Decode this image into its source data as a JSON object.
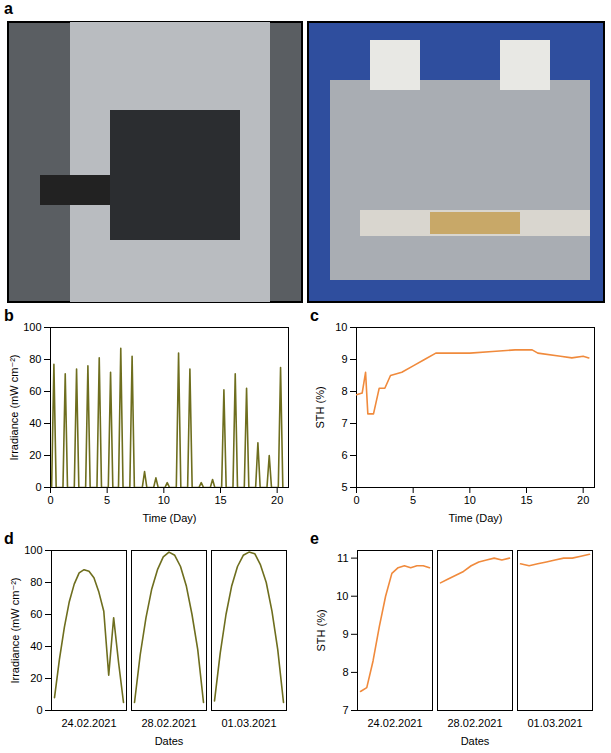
{
  "photo": {
    "panel": "a"
  },
  "chart_data": [
    {
      "type": "line",
      "panel": "b",
      "x_label": "Time (Day)",
      "y_label": "Irradiance (mW cm⁻²)",
      "color": "#6e6e1e",
      "x": [
        0.1,
        0.3,
        0.5,
        1.1,
        1.3,
        1.5,
        2.1,
        2.3,
        2.5,
        3.1,
        3.3,
        3.5,
        4.1,
        4.3,
        4.5,
        5.1,
        5.3,
        5.5,
        6.0,
        6.2,
        6.4,
        7.0,
        7.2,
        7.4,
        8.1,
        8.3,
        8.5,
        9.1,
        9.3,
        9.5,
        10.1,
        10.3,
        10.5,
        11.1,
        11.3,
        11.5,
        12.1,
        12.3,
        12.5,
        13.1,
        13.3,
        13.5,
        14.1,
        14.3,
        14.5,
        15.1,
        15.3,
        15.5,
        16.1,
        16.3,
        16.5,
        17.1,
        17.3,
        17.5,
        18.1,
        18.3,
        18.5,
        19.1,
        19.3,
        19.5,
        20.1,
        20.3,
        20.5
      ],
      "values": [
        0,
        77,
        0,
        0,
        71,
        0,
        0,
        74,
        0,
        0,
        76,
        0,
        0,
        81,
        0,
        0,
        72,
        0,
        0,
        87,
        0,
        0,
        82,
        0,
        0,
        10,
        0,
        0,
        6,
        0,
        0,
        3,
        0,
        0,
        84,
        0,
        0,
        74,
        0,
        0,
        3,
        0,
        0,
        5,
        0,
        0,
        61,
        0,
        0,
        71,
        0,
        0,
        62,
        0,
        0,
        28,
        0,
        0,
        20,
        0,
        0,
        75,
        0
      ],
      "xlim": [
        0,
        21
      ],
      "xticks": [
        0,
        5,
        10,
        15,
        20
      ],
      "ylim": [
        0,
        100
      ],
      "yticks": [
        0,
        20,
        40,
        60,
        80,
        100
      ]
    },
    {
      "type": "line",
      "panel": "c",
      "x_label": "Time (Day)",
      "y_label": "STH (%)",
      "color": "#f08a3c",
      "x": [
        0,
        0.5,
        0.8,
        1.0,
        1.5,
        2.0,
        2.5,
        3.0,
        4.0,
        5.0,
        6.0,
        7.0,
        8.0,
        10.0,
        12.0,
        14.0,
        15.5,
        16.0,
        18.0,
        19.0,
        20.0,
        20.5
      ],
      "values": [
        7.9,
        7.95,
        8.6,
        7.3,
        7.3,
        8.1,
        8.1,
        8.5,
        8.6,
        8.8,
        9.0,
        9.2,
        9.2,
        9.2,
        9.25,
        9.3,
        9.3,
        9.2,
        9.1,
        9.05,
        9.1,
        9.05
      ],
      "xlim": [
        0,
        21
      ],
      "xticks": [
        0,
        5,
        10,
        15,
        20
      ],
      "ylim": [
        5,
        10
      ],
      "yticks": [
        5,
        6,
        7,
        8,
        9,
        10
      ]
    },
    {
      "type": "line",
      "panel": "d",
      "x_label": "Dates",
      "y_label": "Irradiance (mW cm⁻²)",
      "color": "#6e6e1e",
      "categories": [
        "24.02.2021",
        "28.02.2021",
        "01.03.2021"
      ],
      "segments": [
        [
          8,
          32,
          52,
          68,
          79,
          86,
          88,
          87,
          83,
          74,
          62,
          22,
          58,
          30,
          5
        ],
        [
          5,
          35,
          58,
          76,
          88,
          96,
          99,
          97,
          90,
          78,
          60,
          38,
          5
        ],
        [
          6,
          36,
          60,
          78,
          90,
          97,
          99,
          98,
          91,
          80,
          62,
          38,
          5
        ]
      ],
      "ylim": [
        0,
        100
      ],
      "yticks": [
        0,
        20,
        40,
        60,
        80,
        100
      ]
    },
    {
      "type": "line",
      "panel": "e",
      "x_label": "Dates",
      "y_label": "STH (%)",
      "color": "#f08a3c",
      "categories": [
        "24.02.2021",
        "28.02.2021",
        "01.03.2021"
      ],
      "segments": [
        [
          7.5,
          7.6,
          8.3,
          9.2,
          10.0,
          10.6,
          10.75,
          10.8,
          10.75,
          10.8,
          10.8,
          10.75
        ],
        [
          10.35,
          10.45,
          10.55,
          10.65,
          10.8,
          10.9,
          10.95,
          11.0,
          10.95,
          11.0
        ],
        [
          10.85,
          10.8,
          10.85,
          10.9,
          10.95,
          11.0,
          11.0,
          11.05,
          11.1
        ]
      ],
      "ylim": [
        7,
        11.2
      ],
      "yticks": [
        7,
        8,
        9,
        10,
        11
      ]
    }
  ]
}
